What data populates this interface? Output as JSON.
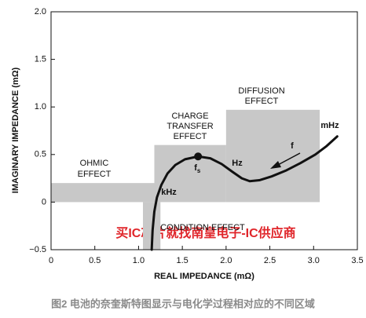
{
  "chart_data": {
    "type": "line",
    "xlabel": "REAL IMPEDANCE (mΩ)",
    "ylabel": "IMAGINARY IMPEDANCE (mΩ)",
    "xlim": [
      0,
      3.5
    ],
    "ylim": [
      -0.5,
      2.0
    ],
    "xticks": [
      0,
      0.5,
      {
        "value": 1,
        "label": "1.0"
      },
      1.5,
      {
        "value": 2,
        "label": "2.0"
      },
      2.5,
      {
        "value": 3,
        "label": "3.0"
      },
      3.5
    ],
    "yticks": [
      {
        "value": -0.5,
        "label": "−0.5"
      },
      0,
      0.5,
      {
        "value": 1,
        "label": "1.0"
      },
      1.5,
      {
        "value": 2,
        "label": "2.0"
      }
    ],
    "region_color": "#c8c8c8",
    "regions": [
      {
        "label": [
          "OHMIC",
          "EFFECT"
        ],
        "x": [
          0,
          1.18
        ],
        "y": [
          0,
          0.2
        ]
      },
      {
        "label": [
          "CHARGE",
          "TRANSFER",
          "EFFECT"
        ],
        "x": [
          1.18,
          2.0
        ],
        "y": [
          0,
          0.6
        ]
      },
      {
        "label": [
          "DIFFUSION",
          "EFFECT"
        ],
        "x": [
          2.0,
          3.07
        ],
        "y": [
          0,
          0.97
        ]
      },
      {
        "label": [
          "CONDITION EFFECT"
        ],
        "x": [
          1.05,
          1.25
        ],
        "y": [
          -0.5,
          0
        ]
      }
    ],
    "series": [
      {
        "color": "#111111",
        "x": [
          1.15,
          1.16,
          1.18,
          1.21,
          1.26,
          1.33,
          1.42,
          1.53,
          1.68,
          1.82,
          1.95,
          2.07,
          2.18,
          2.27,
          2.38,
          2.52,
          2.68,
          2.85,
          3.02,
          3.15,
          3.27
        ],
        "values": [
          -0.5,
          -0.3,
          -0.1,
          0.05,
          0.18,
          0.3,
          0.39,
          0.45,
          0.48,
          0.46,
          0.4,
          0.32,
          0.25,
          0.22,
          0.23,
          0.27,
          0.33,
          0.41,
          0.5,
          0.59,
          0.69
        ]
      }
    ],
    "marker": {
      "x": 1.68,
      "y": 0.48,
      "label": "f",
      "sub": "s"
    },
    "annotations": [
      "kHz",
      "Hz",
      "mHz",
      "f"
    ],
    "watermark": "买IC芯片就找南皇电子-IC供应商",
    "caption": "图2 电池的奈奎斯特图显示与电化学过程相对应的不同区域"
  }
}
